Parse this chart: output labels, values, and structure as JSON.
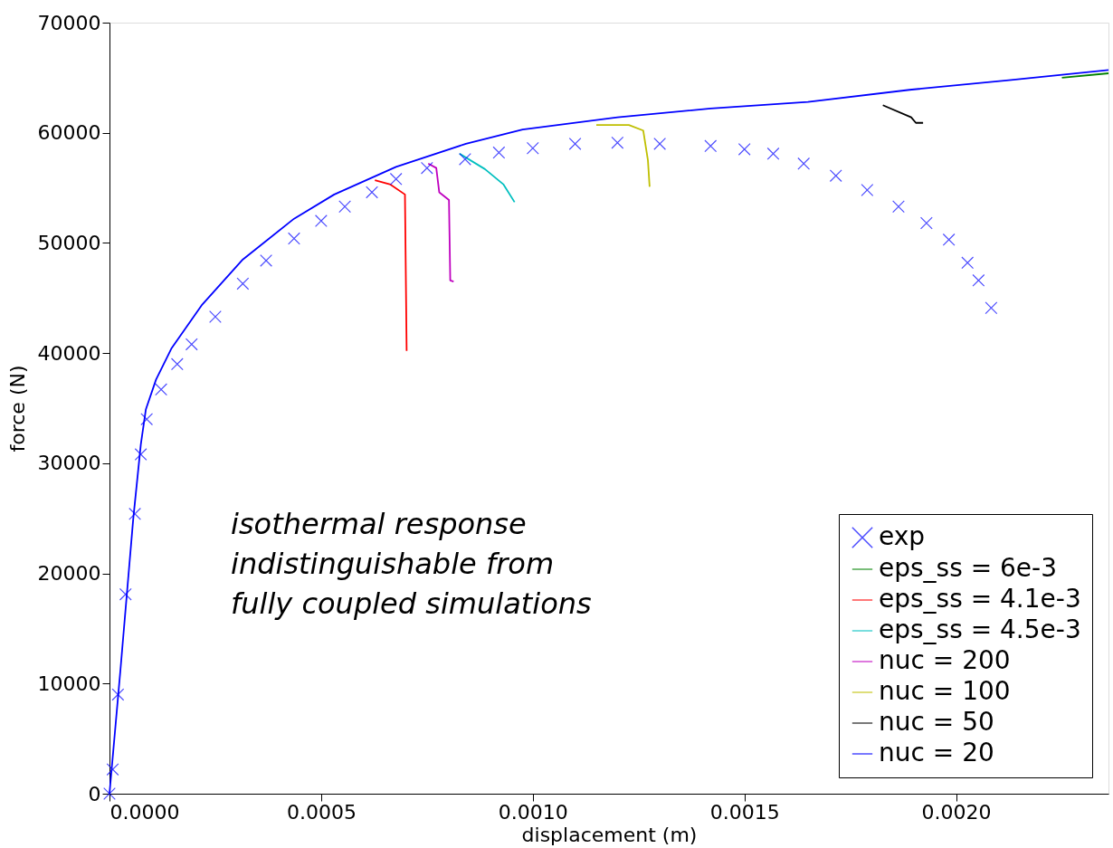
{
  "chart_data": {
    "type": "line",
    "xlabel": "displacement (m)",
    "ylabel": "force (N)",
    "xlim": [
      0,
      0.00236
    ],
    "ylim": [
      0,
      70000
    ],
    "xticks": [
      {
        "value": 0,
        "label": "0.0000"
      },
      {
        "value": 0.0005,
        "label": "0.0005"
      },
      {
        "value": 0.001,
        "label": "0.0010"
      },
      {
        "value": 0.0015,
        "label": "0.0015"
      },
      {
        "value": 0.002,
        "label": "0.0020"
      }
    ],
    "yticks": [
      0,
      10000,
      20000,
      30000,
      40000,
      50000,
      60000,
      70000
    ],
    "grid": false,
    "legend": "bottom right",
    "annotations": [
      "isothermal response\nindistinguishable from\nfully coupled simulations"
    ],
    "series": [
      {
        "name": "exp",
        "type": "scatter",
        "marker": "cross",
        "color": "#0000ff",
        "x": [
          0,
          7.6e-06,
          2e-05,
          3.8e-05,
          6e-05,
          7.4e-05,
          8.8e-05,
          0.000122,
          0.00016,
          0.000194,
          0.00025,
          0.000315,
          0.00037,
          0.000436,
          0.0005,
          0.000556,
          0.00062,
          0.000677,
          0.00075,
          0.00084,
          0.00092,
          0.001,
          0.0011,
          0.0012,
          0.0013,
          0.00142,
          0.0015,
          0.001568,
          0.00164,
          0.001716,
          0.00179,
          0.001864,
          0.00193,
          0.001983,
          0.002027,
          0.002053,
          0.002083
        ],
        "values": [
          0,
          2200,
          9000,
          18100,
          25400,
          30800,
          34000,
          36700,
          39000,
          40800,
          43300,
          46300,
          48400,
          50400,
          52000,
          53300,
          54600,
          55800,
          56800,
          57600,
          58200,
          58600,
          59000,
          59100,
          59000,
          58800,
          58500,
          58100,
          57200,
          56100,
          54800,
          53300,
          51800,
          50300,
          48200,
          46600,
          44100
        ]
      },
      {
        "name": "eps_ss = 6e-3",
        "color": "#008000",
        "x": [
          0.00225,
          0.00236
        ],
        "values": [
          65000,
          65400
        ]
      },
      {
        "name": "eps_ss = 4.1e-3",
        "color": "#ff0000",
        "x": [
          0.000627,
          0.000664,
          0.000698,
          0.000702
        ],
        "values": [
          55700,
          55300,
          54400,
          40200
        ]
      },
      {
        "name": "eps_ss = 4.5e-3",
        "color": "#00bfbf",
        "x": [
          0.000827,
          0.000887,
          0.000931,
          0.000957
        ],
        "values": [
          58100,
          56700,
          55300,
          53700
        ]
      },
      {
        "name": "nuc = 200",
        "color": "#bf00bf",
        "x": [
          0.000753,
          0.000772,
          0.000779,
          0.000802,
          0.000805,
          0.000813
        ],
        "values": [
          57200,
          56800,
          54600,
          53900,
          46600,
          46500
        ]
      },
      {
        "name": "nuc = 100",
        "color": "#bfbf00",
        "x": [
          0.00115,
          0.001227,
          0.001261,
          0.001272,
          0.001276
        ],
        "values": [
          60700,
          60700,
          60200,
          57500,
          55100
        ]
      },
      {
        "name": "nuc = 50",
        "color": "#000000",
        "x": [
          0.001827,
          0.001894,
          0.001905,
          0.001922
        ],
        "values": [
          62500,
          61400,
          60900,
          60900
        ]
      },
      {
        "name": "nuc = 20",
        "color": "#0000ff",
        "x": [
          0,
          2.6e-05,
          5.6e-05,
          7.4e-05,
          8.6e-05,
          0.00011,
          0.000146,
          0.000219,
          0.000315,
          0.000436,
          0.000531,
          0.000677,
          0.000842,
          0.000976,
          0.0012,
          0.00142,
          0.00165,
          0.00189,
          0.00213,
          0.00236
        ],
        "values": [
          0,
          11300,
          24900,
          31700,
          34900,
          37600,
          40400,
          44400,
          48500,
          52200,
          54400,
          56900,
          59000,
          60300,
          61400,
          62200,
          62800,
          63900,
          64800,
          65700
        ]
      }
    ]
  }
}
